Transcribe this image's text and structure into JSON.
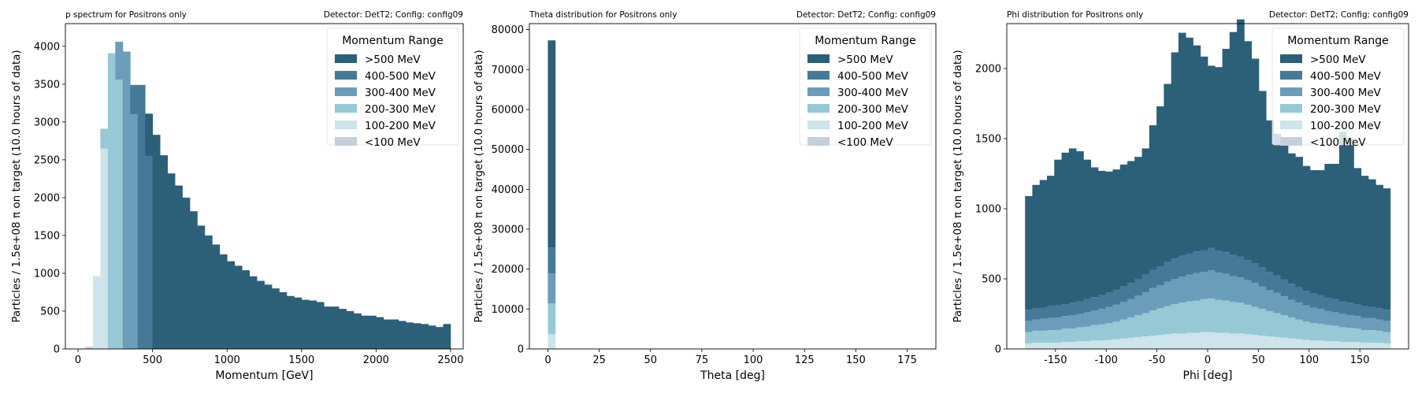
{
  "colors": {
    ">500 MeV": "#2c5f78",
    "400-500 MeV": "#447a98",
    "300-400 MeV": "#6a9db9",
    "200-300 MeV": "#96c8d6",
    "100-200 MeV": "#cce4ea",
    "<100 MeV": "#c3cfdb"
  },
  "chart_data": [
    {
      "type": "bar",
      "title": "p spectrum for Positrons only",
      "subtitle": "Detector: DetT2; Config: config09",
      "xlabel": "Momentum [GeV]",
      "ylabel": "Particles / 1.5e+08 π on target (10.0 hours of data)",
      "xlim": [
        -85,
        2585
      ],
      "ylim": [
        0,
        4300
      ],
      "xticks": [
        0,
        500,
        1000,
        1500,
        2000,
        2500
      ],
      "yticks": [
        0,
        500,
        1000,
        1500,
        2000,
        2500,
        3000,
        3500,
        4000
      ],
      "bin_width": 50,
      "bin_start": 0,
      "legend_title": "Momentum Range",
      "legend_position": "top-right",
      "legend": [
        ">500 MeV",
        "400-500 MeV",
        "300-400 MeV",
        "200-300 MeV",
        "100-200 MeV",
        "<100 MeV"
      ],
      "series": [
        {
          "name": "<100 MeV",
          "values": [
            5,
            30,
            0,
            0,
            0,
            0,
            0,
            0,
            0,
            0,
            0,
            0,
            0,
            0,
            0,
            0,
            0,
            0,
            0,
            0,
            0,
            0,
            0,
            0,
            0,
            0,
            0,
            0,
            0,
            0,
            0,
            0,
            0,
            0,
            0,
            0,
            0,
            0,
            0,
            0,
            0,
            0,
            0,
            0,
            0,
            0,
            0,
            0,
            0,
            0
          ]
        },
        {
          "name": "100-200 MeV",
          "values": [
            0,
            0,
            960,
            2650,
            0,
            0,
            0,
            0,
            0,
            0,
            0,
            0,
            0,
            0,
            0,
            0,
            0,
            0,
            0,
            0,
            0,
            0,
            0,
            0,
            0,
            0,
            0,
            0,
            0,
            0,
            0,
            0,
            0,
            0,
            0,
            0,
            0,
            0,
            0,
            0,
            0,
            0,
            0,
            0,
            0,
            0,
            0,
            0,
            0,
            0
          ]
        },
        {
          "name": "200-300 MeV",
          "values": [
            0,
            0,
            0,
            260,
            3910,
            3560,
            0,
            0,
            0,
            0,
            0,
            0,
            0,
            0,
            0,
            0,
            0,
            0,
            0,
            0,
            0,
            0,
            0,
            0,
            0,
            0,
            0,
            0,
            0,
            0,
            0,
            0,
            0,
            0,
            0,
            0,
            0,
            0,
            0,
            0,
            0,
            0,
            0,
            0,
            0,
            0,
            0,
            0,
            0,
            0
          ]
        },
        {
          "name": "300-400 MeV",
          "values": [
            0,
            0,
            0,
            0,
            0,
            500,
            3930,
            3100,
            0,
            0,
            0,
            0,
            0,
            0,
            0,
            0,
            0,
            0,
            0,
            0,
            0,
            0,
            0,
            0,
            0,
            0,
            0,
            0,
            0,
            0,
            0,
            0,
            0,
            0,
            0,
            0,
            0,
            0,
            0,
            0,
            0,
            0,
            0,
            0,
            0,
            0,
            0,
            0,
            0,
            0
          ]
        },
        {
          "name": "400-500 MeV",
          "values": [
            0,
            0,
            0,
            0,
            0,
            0,
            0,
            390,
            3490,
            2550,
            0,
            0,
            0,
            0,
            0,
            0,
            0,
            0,
            0,
            0,
            0,
            0,
            0,
            0,
            0,
            0,
            0,
            0,
            0,
            0,
            0,
            0,
            0,
            0,
            0,
            0,
            0,
            0,
            0,
            0,
            0,
            0,
            0,
            0,
            0,
            0,
            0,
            0,
            0,
            0
          ]
        },
        {
          "name": ">500 MeV",
          "values": [
            0,
            0,
            0,
            0,
            0,
            0,
            0,
            0,
            0,
            560,
            2830,
            2560,
            2320,
            2160,
            2000,
            1820,
            1630,
            1500,
            1380,
            1250,
            1160,
            1100,
            1040,
            960,
            900,
            850,
            800,
            750,
            700,
            680,
            650,
            640,
            620,
            560,
            560,
            530,
            500,
            470,
            440,
            440,
            420,
            390,
            390,
            370,
            350,
            340,
            330,
            310,
            290,
            330
          ]
        }
      ]
    },
    {
      "type": "bar",
      "title": "Theta distribution for Positrons only",
      "subtitle": "Detector: DetT2; Config: config09",
      "xlabel": "Theta [deg]",
      "ylabel": "Particles / 1.5e+08 π on target (10.0 hours of data)",
      "xlim": [
        -9,
        189
      ],
      "ylim": [
        0,
        81500
      ],
      "xticks": [
        0,
        25,
        50,
        75,
        100,
        125,
        150,
        175
      ],
      "yticks": [
        0,
        10000,
        20000,
        30000,
        40000,
        50000,
        60000,
        70000,
        80000
      ],
      "bin_width": 3.6,
      "bin_start": 0,
      "legend_title": "Momentum Range",
      "legend_position": "top-right",
      "legend": [
        ">500 MeV",
        "400-500 MeV",
        "300-400 MeV",
        "200-300 MeV",
        "100-200 MeV",
        "<100 MeV"
      ],
      "series": [
        {
          "name": "<100 MeV",
          "values": [
            0
          ]
        },
        {
          "name": "100-200 MeV",
          "values": [
            3700
          ]
        },
        {
          "name": "200-300 MeV",
          "values": [
            7700
          ]
        },
        {
          "name": "300-400 MeV",
          "values": [
            7500
          ]
        },
        {
          "name": "400-500 MeV",
          "values": [
            6500
          ]
        },
        {
          "name": ">500 MeV",
          "values": [
            51900
          ]
        }
      ]
    },
    {
      "type": "bar",
      "title": "Phi distribution for Positrons only",
      "subtitle": "Detector: DetT2; Config: config09",
      "xlabel": "Phi [deg]",
      "ylabel": "Particles / 1.5e+08 π on target (10.0 hours of data)",
      "xlim": [
        -198,
        198
      ],
      "ylim": [
        0,
        2320
      ],
      "xticks": [
        -150,
        -100,
        -50,
        0,
        50,
        100,
        150
      ],
      "yticks": [
        0,
        500,
        1000,
        1500,
        2000
      ],
      "bin_width": 7.2,
      "bin_start": -180,
      "legend_title": "Momentum Range",
      "legend_position": "top-right",
      "legend": [
        ">500 MeV",
        "400-500 MeV",
        "300-400 MeV",
        "200-300 MeV",
        "100-200 MeV",
        "<100 MeV"
      ],
      "series": [
        {
          "name": "<100 MeV",
          "values": [
            0,
            0,
            0,
            0,
            0,
            0,
            0,
            0,
            0,
            0,
            0,
            0,
            0,
            0,
            0,
            0,
            0,
            0,
            0,
            0,
            0,
            0,
            0,
            0,
            0,
            0,
            0,
            0,
            0,
            0,
            0,
            0,
            0,
            0,
            0,
            0,
            0,
            0,
            0,
            0,
            0,
            0,
            0,
            0,
            0,
            0,
            0,
            0,
            0,
            0
          ]
        },
        {
          "name": "100-200 MeV",
          "values": [
            40,
            45,
            45,
            45,
            45,
            50,
            50,
            55,
            55,
            60,
            60,
            65,
            70,
            75,
            80,
            85,
            90,
            95,
            100,
            105,
            110,
            110,
            115,
            115,
            120,
            120,
            115,
            115,
            110,
            110,
            105,
            100,
            95,
            90,
            85,
            80,
            75,
            70,
            65,
            60,
            60,
            55,
            55,
            50,
            50,
            50,
            45,
            45,
            45,
            40
          ]
        },
        {
          "name": "200-300 MeV",
          "values": [
            80,
            85,
            85,
            90,
            90,
            95,
            95,
            100,
            105,
            110,
            115,
            120,
            125,
            135,
            145,
            155,
            165,
            180,
            190,
            200,
            210,
            220,
            225,
            230,
            235,
            240,
            235,
            230,
            225,
            220,
            210,
            200,
            190,
            180,
            170,
            160,
            150,
            140,
            130,
            125,
            120,
            115,
            110,
            105,
            100,
            95,
            90,
            90,
            85,
            80
          ]
        },
        {
          "name": "300-400 MeV",
          "values": [
            80,
            80,
            85,
            85,
            90,
            90,
            95,
            95,
            100,
            105,
            110,
            115,
            120,
            125,
            130,
            140,
            150,
            160,
            165,
            175,
            180,
            185,
            190,
            195,
            195,
            200,
            195,
            190,
            185,
            180,
            175,
            170,
            160,
            150,
            145,
            135,
            125,
            120,
            115,
            110,
            105,
            100,
            95,
            95,
            90,
            90,
            85,
            85,
            80,
            80
          ]
        },
        {
          "name": "400-500 MeV",
          "values": [
            80,
            80,
            80,
            85,
            85,
            85,
            90,
            90,
            95,
            95,
            100,
            100,
            105,
            110,
            115,
            120,
            125,
            130,
            135,
            140,
            145,
            150,
            150,
            155,
            155,
            160,
            155,
            155,
            150,
            150,
            145,
            140,
            135,
            130,
            125,
            120,
            115,
            110,
            105,
            100,
            100,
            95,
            95,
            90,
            90,
            85,
            85,
            80,
            80,
            80
          ]
        },
        {
          "name": ">500 MeV",
          "values": [
            810,
            880,
            910,
            930,
            1040,
            1080,
            1100,
            1070,
            995,
            925,
            885,
            865,
            860,
            870,
            870,
            870,
            900,
            1030,
            1140,
            1270,
            1470,
            1590,
            1540,
            1470,
            1380,
            1300,
            1310,
            1450,
            1590,
            1690,
            1560,
            1460,
            1260,
            1080,
            1010,
            970,
            930,
            930,
            890,
            880,
            890,
            955,
            965,
            1210,
            1170,
            970,
            930,
            910,
            880,
            865
          ]
        }
      ]
    }
  ]
}
